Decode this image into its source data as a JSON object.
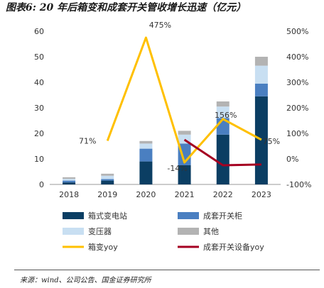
{
  "title": "图表6: 20 年后箱变和成套开关管收增长迅速（亿元）",
  "source": "来源：wind、公司公告、国金证券研究所",
  "chart_data": {
    "type": "bar",
    "categories": [
      "2018",
      "2019",
      "2020",
      "2021",
      "2022",
      "2023"
    ],
    "series": [
      {
        "name": "箱式变电站",
        "kind": "stacked-bar",
        "axis": "left",
        "color": "#0b3e63",
        "values": [
          0.8,
          1.5,
          9,
          7.5,
          19.5,
          34.5
        ]
      },
      {
        "name": "成套开关柜",
        "kind": "stacked-bar",
        "axis": "left",
        "color": "#4a7fc1",
        "values": [
          0.7,
          0.6,
          5,
          8.5,
          6.5,
          5
        ]
      },
      {
        "name": "变压器",
        "kind": "stacked-bar",
        "axis": "left",
        "color": "#c8dff2",
        "values": [
          0.7,
          1.3,
          2,
          3.5,
          4.5,
          7
        ]
      },
      {
        "name": "其他",
        "kind": "stacked-bar",
        "axis": "left",
        "color": "#b3b3b3",
        "values": [
          0.6,
          0.8,
          1,
          1.5,
          2,
          3.5
        ]
      },
      {
        "name": "箱变yoy",
        "kind": "line",
        "axis": "right",
        "color": "#ffc000",
        "values": [
          null,
          71,
          475,
          -14,
          156,
          75
        ]
      },
      {
        "name": "成套开关设备yoy",
        "kind": "line",
        "axis": "right",
        "color": "#a50021",
        "values": [
          null,
          null,
          null,
          75,
          -25,
          -22
        ]
      }
    ],
    "data_labels": [
      {
        "series": "箱变yoy",
        "category": "2019",
        "text": "71%"
      },
      {
        "series": "箱变yoy",
        "category": "2020",
        "text": "475%"
      },
      {
        "series": "箱变yoy",
        "category": "2021",
        "text": "-14%"
      },
      {
        "series": "箱变yoy",
        "category": "2022",
        "text": "156%"
      },
      {
        "series": "箱变yoy",
        "category": "2023",
        "text": "75%"
      }
    ],
    "ylim": [
      0,
      60
    ],
    "yticks": [
      0,
      10,
      20,
      30,
      40,
      50,
      60
    ],
    "y2lim": [
      -100,
      500
    ],
    "y2ticks": [
      "-100%",
      "0%",
      "100%",
      "200%",
      "300%",
      "400%",
      "500%"
    ],
    "grid": false,
    "legend": "bottom"
  }
}
